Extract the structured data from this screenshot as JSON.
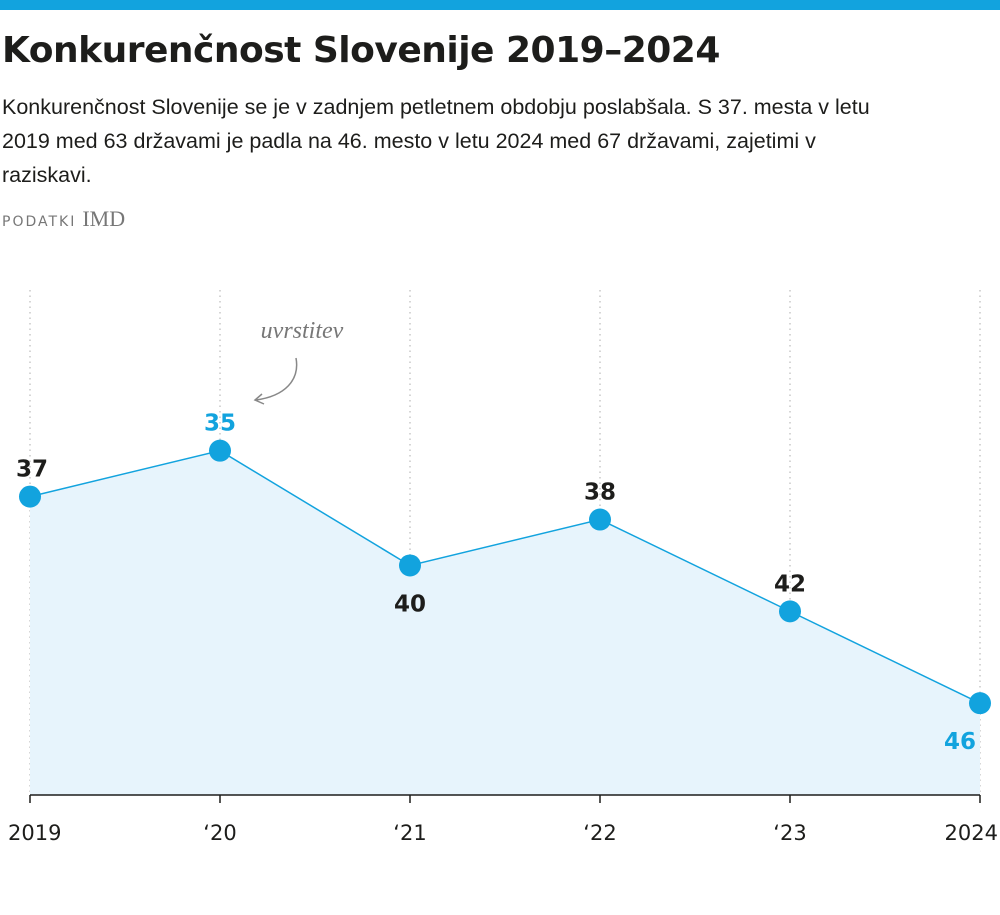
{
  "chart_data": {
    "type": "area-line",
    "title": "Konkurenčnost Slovenije 2019–2024",
    "subtitle": "Konkurenčnost Slovenije se je v zadnjem petletnem obdobju poslabšala. S 37. mesta v letu 2019 med 63 državami je padla na 46. mesto v letu 2024 med 67 državami, zajetimi v raziskavi.",
    "source_label": "PODATKI",
    "source": "IMD",
    "annotation": "uvrstitev",
    "categories": [
      "2019",
      "‘20",
      "‘21",
      "‘22",
      "‘23",
      "2024"
    ],
    "values": [
      37,
      35,
      40,
      38,
      42,
      46
    ],
    "label_colors": [
      "#1d1d1b",
      "#12a3de",
      "#1d1d1b",
      "#1d1d1b",
      "#1d1d1b",
      "#12a3de"
    ],
    "color": "#12a3de",
    "area_color": "#e7f4fc",
    "ylim": [
      50,
      28
    ],
    "grid": true
  }
}
